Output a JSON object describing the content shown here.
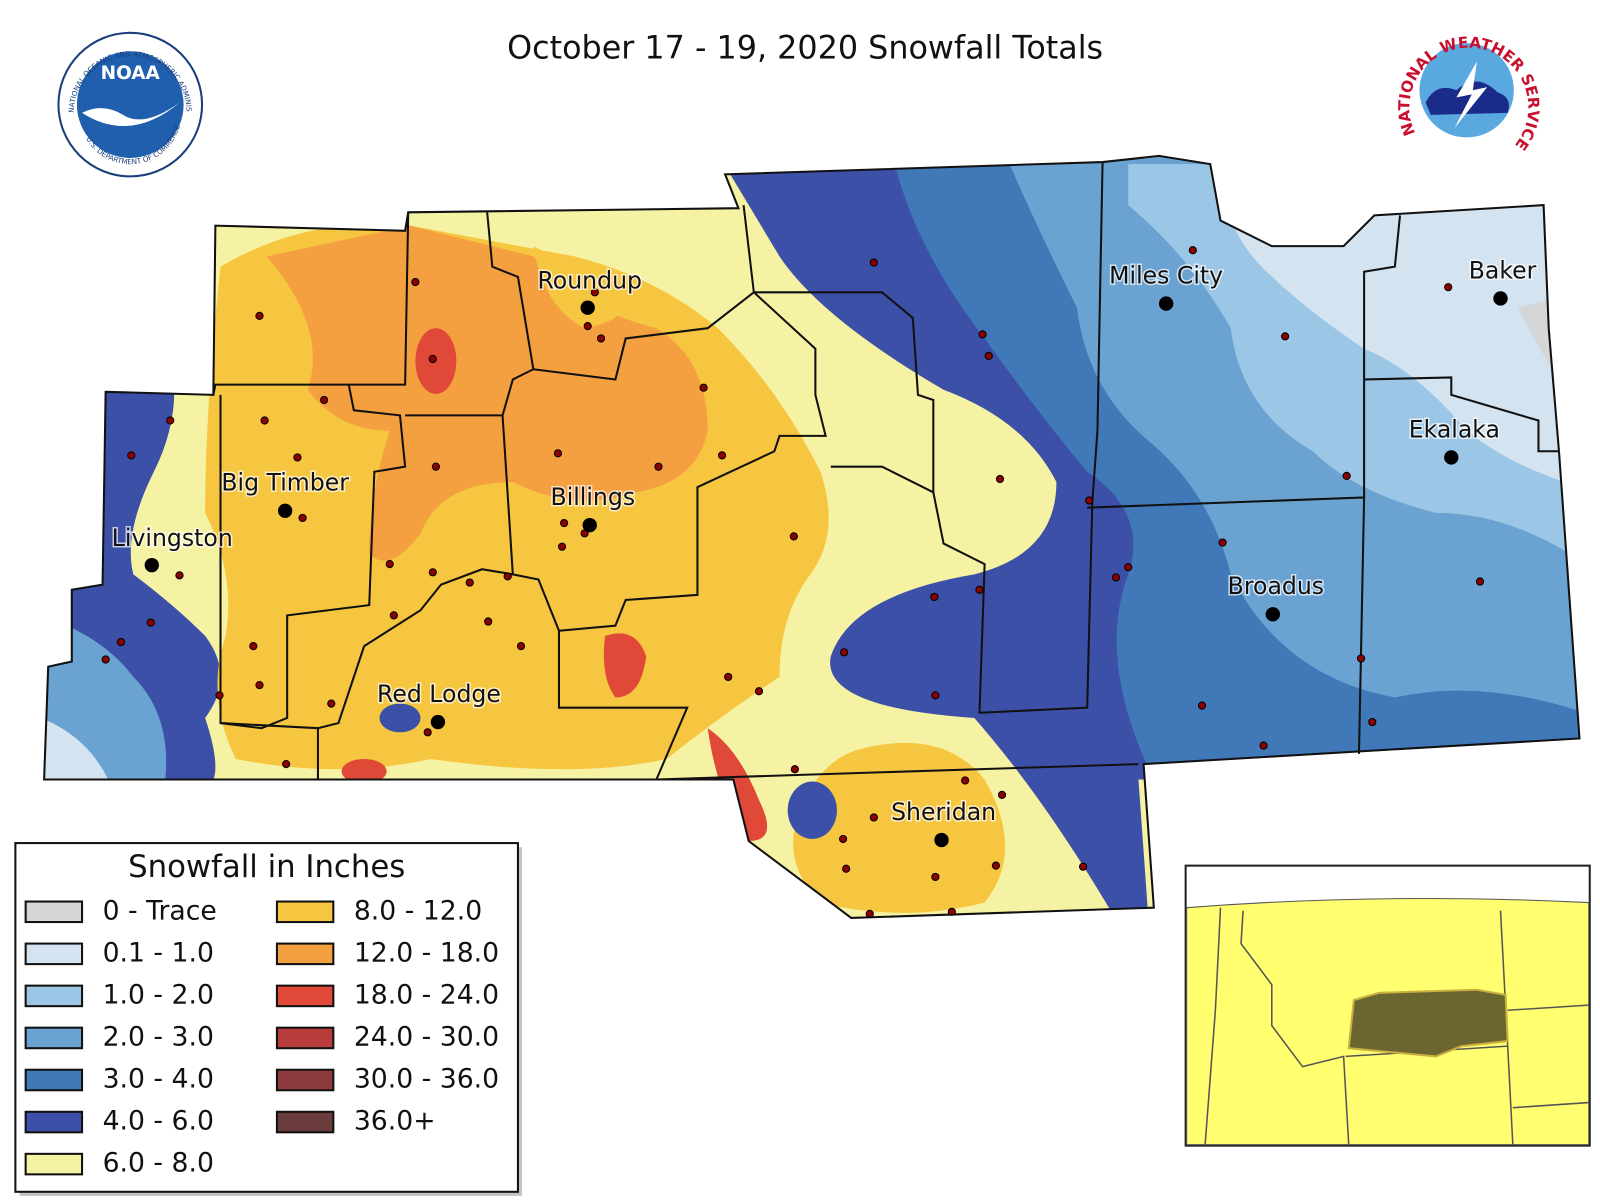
{
  "title": "October 17 - 19, 2020 Snowfall Totals",
  "logos": {
    "noaa": "NOAA",
    "noaa_top": "NATIONAL OCEANIC AND ATMOSPHERIC ADMINISTRATION",
    "noaa_bottom": "U.S. DEPARTMENT OF COMMERCE",
    "nws": "NATIONAL WEATHER SERVICE"
  },
  "cities": [
    "Roundup",
    "Miles City",
    "Baker",
    "Big Timber",
    "Billings",
    "Ekalaka",
    "Livingston",
    "Broadus",
    "Red Lodge",
    "Sheridan"
  ],
  "legend": {
    "title": "Snowfall in Inches",
    "items": [
      {
        "label": "0 - Trace",
        "color": "#d6d6d6"
      },
      {
        "label": "0.1 - 1.0",
        "color": "#d3e3f0"
      },
      {
        "label": "1.0 - 2.0",
        "color": "#9cc6e6"
      },
      {
        "label": "2.0 - 3.0",
        "color": "#6aa3d2"
      },
      {
        "label": "3.0 - 4.0",
        "color": "#4078b8"
      },
      {
        "label": "4.0 - 6.0",
        "color": "#3c50a8"
      },
      {
        "label": "6.0 - 8.0",
        "color": "#f6f2a4"
      },
      {
        "label": "8.0 - 12.0",
        "color": "#f6c640"
      },
      {
        "label": "12.0 - 18.0",
        "color": "#f5a040"
      },
      {
        "label": "18.0 - 24.0",
        "color": "#e04838"
      },
      {
        "label": "24.0 - 30.0",
        "color": "#b83c3c"
      },
      {
        "label": "30.0 - 36.0",
        "color": "#8c3c3c"
      },
      {
        "label": "36.0+",
        "color": "#6a3c3c"
      }
    ]
  }
}
